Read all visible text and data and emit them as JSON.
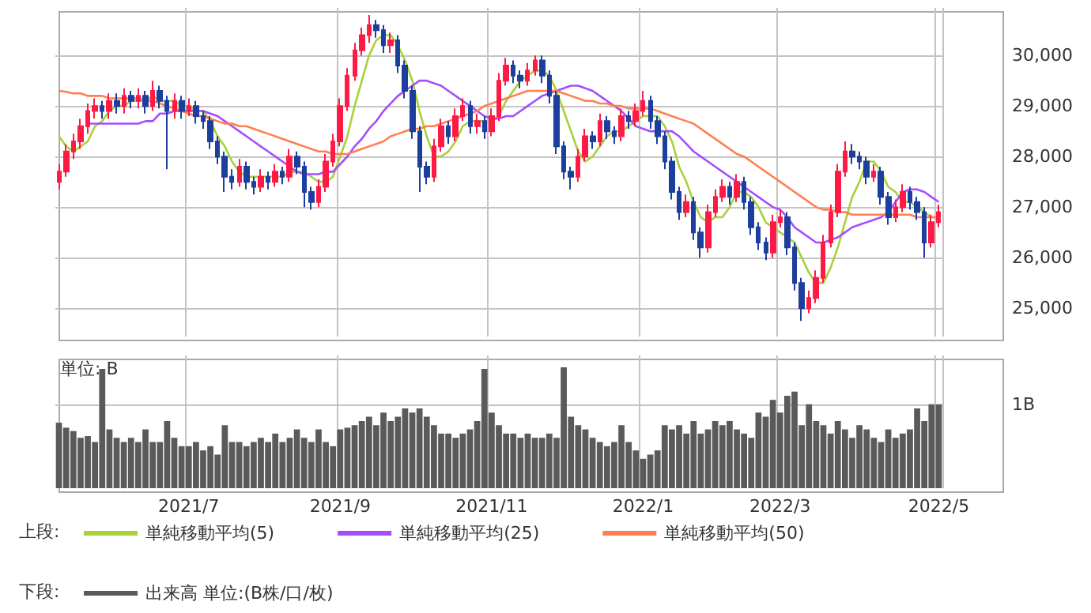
{
  "chart_data": [
    {
      "type": "candlestick",
      "categories": [
        null,
        null,
        null,
        null,
        null,
        null,
        null,
        null,
        null,
        null,
        null,
        null,
        null,
        null,
        null,
        null,
        null,
        null,
        "2021/7",
        null,
        null,
        null,
        null,
        null,
        null,
        null,
        null,
        null,
        null,
        null,
        null,
        null,
        null,
        null,
        null,
        null,
        null,
        null,
        null,
        "2021/9",
        null,
        null,
        null,
        null,
        null,
        null,
        null,
        null,
        null,
        null,
        null,
        null,
        null,
        null,
        null,
        null,
        null,
        null,
        null,
        null,
        "2021/11",
        null,
        null,
        null,
        null,
        null,
        null,
        null,
        null,
        null,
        null,
        null,
        null,
        null,
        null,
        null,
        null,
        null,
        null,
        null,
        null,
        "2022/1",
        null,
        null,
        null,
        null,
        null,
        null,
        null,
        null,
        null,
        null,
        null,
        null,
        null,
        null,
        null,
        null,
        null,
        null,
        "2022/3",
        null,
        null,
        null,
        null,
        null,
        null,
        null,
        null,
        null,
        null,
        null,
        null,
        null,
        null,
        null,
        null,
        null,
        null,
        null,
        null,
        null,
        "2022/5"
      ],
      "ohlc": [
        [
          27500,
          27850,
          27350,
          27700
        ],
        [
          27700,
          28250,
          27600,
          28100
        ],
        [
          28100,
          28450,
          27950,
          28300
        ],
        [
          28300,
          28750,
          28150,
          28600
        ],
        [
          28600,
          29050,
          28450,
          28900
        ],
        [
          28900,
          29150,
          28750,
          29000
        ],
        [
          29000,
          29100,
          28750,
          28900
        ],
        [
          28900,
          29250,
          28750,
          29100
        ],
        [
          29100,
          29250,
          28850,
          29000
        ],
        [
          29000,
          29350,
          28850,
          29200
        ],
        [
          29200,
          29300,
          28950,
          29100
        ],
        [
          29100,
          29350,
          28950,
          29200
        ],
        [
          29200,
          29300,
          28850,
          29000
        ],
        [
          29000,
          29500,
          28900,
          29300
        ],
        [
          29300,
          29400,
          28950,
          29100
        ],
        [
          29100,
          29200,
          27750,
          28900
        ],
        [
          28900,
          29250,
          28750,
          29100
        ],
        [
          29100,
          29200,
          28750,
          28900
        ],
        [
          28900,
          29150,
          28800,
          29000
        ],
        [
          29000,
          29100,
          28650,
          28800
        ],
        [
          28800,
          28900,
          28550,
          28700
        ],
        [
          28700,
          28800,
          28150,
          28300
        ],
        [
          28300,
          28400,
          27850,
          28000
        ],
        [
          28000,
          28100,
          27300,
          27600
        ],
        [
          27600,
          27750,
          27350,
          27500
        ],
        [
          27500,
          27950,
          27400,
          27800
        ],
        [
          27800,
          27900,
          27350,
          27500
        ],
        [
          27500,
          27600,
          27250,
          27400
        ],
        [
          27400,
          27750,
          27300,
          27600
        ],
        [
          27600,
          27700,
          27350,
          27500
        ],
        [
          27500,
          27850,
          27400,
          27700
        ],
        [
          27700,
          27800,
          27450,
          27600
        ],
        [
          27600,
          28150,
          27500,
          28000
        ],
        [
          28000,
          28100,
          27650,
          27800
        ],
        [
          27800,
          27900,
          27000,
          27300
        ],
        [
          27300,
          27400,
          26950,
          27100
        ],
        [
          27100,
          27550,
          27000,
          27400
        ],
        [
          27400,
          28050,
          27300,
          27900
        ],
        [
          27900,
          28450,
          27800,
          28300
        ],
        [
          28300,
          29150,
          28200,
          29000
        ],
        [
          29000,
          29750,
          28900,
          29600
        ],
        [
          29600,
          30250,
          29500,
          30100
        ],
        [
          30100,
          30550,
          30000,
          30400
        ],
        [
          30400,
          30800,
          30250,
          30600
        ],
        [
          30600,
          30700,
          30350,
          30500
        ],
        [
          30500,
          30600,
          30050,
          30200
        ],
        [
          30200,
          30450,
          30050,
          30300
        ],
        [
          30300,
          30400,
          29650,
          29800
        ],
        [
          29800,
          29900,
          29150,
          29300
        ],
        [
          29300,
          29400,
          28350,
          28500
        ],
        [
          28500,
          28600,
          27300,
          27800
        ],
        [
          27800,
          27900,
          27450,
          27600
        ],
        [
          27600,
          28350,
          27500,
          28200
        ],
        [
          28200,
          28750,
          28100,
          28600
        ],
        [
          28600,
          28700,
          28250,
          28400
        ],
        [
          28400,
          28950,
          28300,
          28800
        ],
        [
          28800,
          29150,
          28700,
          29000
        ],
        [
          29000,
          29100,
          28450,
          28600
        ],
        [
          28600,
          28850,
          28450,
          28700
        ],
        [
          28700,
          28800,
          28350,
          28500
        ],
        [
          28500,
          28950,
          28400,
          28800
        ],
        [
          28800,
          29650,
          28700,
          29500
        ],
        [
          29500,
          29950,
          29400,
          29800
        ],
        [
          29800,
          29900,
          29450,
          29600
        ],
        [
          29600,
          29700,
          29350,
          29500
        ],
        [
          29500,
          29850,
          29400,
          29700
        ],
        [
          29700,
          30000,
          29600,
          29900
        ],
        [
          29900,
          30000,
          29450,
          29600
        ],
        [
          29600,
          29700,
          29050,
          29200
        ],
        [
          29200,
          29300,
          28050,
          28200
        ],
        [
          28200,
          28300,
          27550,
          27700
        ],
        [
          27700,
          27800,
          27350,
          27600
        ],
        [
          27600,
          28150,
          27500,
          28000
        ],
        [
          28000,
          28550,
          27900,
          28400
        ],
        [
          28400,
          28500,
          28150,
          28300
        ],
        [
          28300,
          28850,
          28200,
          28700
        ],
        [
          28700,
          28800,
          28350,
          28500
        ],
        [
          28500,
          28600,
          28250,
          28400
        ],
        [
          28400,
          28950,
          28300,
          28800
        ],
        [
          28800,
          28900,
          28550,
          28700
        ],
        [
          28700,
          29050,
          28600,
          28900
        ],
        [
          28900,
          29300,
          28800,
          29100
        ],
        [
          29100,
          29200,
          28550,
          28700
        ],
        [
          28700,
          28800,
          28250,
          28400
        ],
        [
          28400,
          28500,
          27750,
          27900
        ],
        [
          27900,
          28000,
          27150,
          27300
        ],
        [
          27300,
          27400,
          26750,
          26900
        ],
        [
          26900,
          27250,
          26800,
          27100
        ],
        [
          27100,
          27200,
          26350,
          26500
        ],
        [
          26500,
          26600,
          26000,
          26200
        ],
        [
          26200,
          27050,
          26100,
          26900
        ],
        [
          26900,
          27350,
          26800,
          27200
        ],
        [
          27200,
          27550,
          27100,
          27400
        ],
        [
          27400,
          27500,
          27050,
          27200
        ],
        [
          27200,
          27650,
          27100,
          27500
        ],
        [
          27500,
          27600,
          26950,
          27100
        ],
        [
          27100,
          27200,
          26450,
          26600
        ],
        [
          26600,
          26700,
          26150,
          26300
        ],
        [
          26300,
          26400,
          25950,
          26100
        ],
        [
          26100,
          26850,
          26000,
          26700
        ],
        [
          26700,
          26950,
          26600,
          26800
        ],
        [
          26800,
          26900,
          26050,
          26200
        ],
        [
          26200,
          26300,
          25350,
          25500
        ],
        [
          25500,
          25600,
          24750,
          25000
        ],
        [
          25000,
          25350,
          24900,
          25200
        ],
        [
          25200,
          25750,
          25100,
          25600
        ],
        [
          25600,
          26450,
          25500,
          26300
        ],
        [
          26300,
          27050,
          26200,
          26900
        ],
        [
          26900,
          27850,
          26800,
          27700
        ],
        [
          27700,
          28300,
          27600,
          28100
        ],
        [
          28100,
          28250,
          27850,
          28000
        ],
        [
          28000,
          28100,
          27750,
          27900
        ],
        [
          27900,
          28000,
          27450,
          27600
        ],
        [
          27600,
          27850,
          27500,
          27700
        ],
        [
          27700,
          27800,
          27050,
          27200
        ],
        [
          27200,
          27300,
          26650,
          26800
        ],
        [
          26800,
          27150,
          26700,
          27000
        ],
        [
          27000,
          27450,
          26900,
          27300
        ],
        [
          27300,
          27400,
          26950,
          27100
        ],
        [
          27100,
          27200,
          26750,
          26900
        ],
        [
          26900,
          27000,
          26000,
          26300
        ],
        [
          26300,
          26850,
          26200,
          26700
        ],
        [
          26700,
          27050,
          26600,
          26900
        ]
      ],
      "series": [
        {
          "name": "単純移動平均(5)",
          "type": "line",
          "color": "#a8d13a",
          "values": [
            28400,
            28200,
            28100,
            28200,
            28300,
            28600,
            28700,
            28900,
            29000,
            29000,
            29100,
            29100,
            29100,
            29200,
            29100,
            29100,
            29100,
            29000,
            29000,
            28900,
            28900,
            28700,
            28400,
            28200,
            27900,
            27700,
            27600,
            27600,
            27600,
            27600,
            27600,
            27600,
            27700,
            27700,
            27700,
            27600,
            27500,
            27500,
            27600,
            28000,
            28400,
            29000,
            29500,
            30000,
            30300,
            30400,
            30400,
            30200,
            29900,
            29500,
            28900,
            28400,
            28000,
            28000,
            28100,
            28300,
            28600,
            28700,
            28700,
            28700,
            28700,
            28800,
            29100,
            29300,
            29500,
            29600,
            29700,
            29700,
            29600,
            29300,
            28900,
            28500,
            28100,
            27900,
            28000,
            28200,
            28400,
            28500,
            28500,
            28600,
            28700,
            28800,
            28800,
            28800,
            28600,
            28300,
            27800,
            27500,
            27100,
            26800,
            26700,
            26800,
            26800,
            27000,
            27300,
            27300,
            27200,
            27000,
            26700,
            26600,
            26500,
            26400,
            26300,
            26000,
            25700,
            25500,
            25500,
            25800,
            26200,
            26700,
            27200,
            27500,
            27900,
            27900,
            27700,
            27400,
            27300,
            27100,
            27100,
            27000,
            26900,
            26800,
            26800
          ]
        },
        {
          "name": "単純移動平均(25)",
          "type": "line",
          "color": "#a64dff",
          "values": [
            null,
            null,
            null,
            null,
            28650,
            28650,
            28650,
            28650,
            28650,
            28650,
            28650,
            28650,
            28700,
            28700,
            28850,
            28850,
            28900,
            28900,
            28900,
            28900,
            28900,
            28850,
            28800,
            28700,
            28600,
            28500,
            28400,
            28300,
            28200,
            28100,
            28000,
            27900,
            27800,
            27700,
            27650,
            27650,
            27650,
            27700,
            27700,
            27850,
            28000,
            28200,
            28350,
            28550,
            28700,
            28900,
            29050,
            29200,
            29300,
            29400,
            29500,
            29500,
            29450,
            29400,
            29300,
            29200,
            29100,
            29000,
            28900,
            28800,
            28750,
            28750,
            28800,
            28800,
            28900,
            29000,
            29100,
            29200,
            29250,
            29300,
            29350,
            29400,
            29400,
            29350,
            29300,
            29200,
            29100,
            29000,
            28900,
            28750,
            28600,
            28550,
            28500,
            28500,
            28500,
            28500,
            28400,
            28250,
            28100,
            28000,
            27900,
            27800,
            27700,
            27600,
            27500,
            27400,
            27300,
            27200,
            27100,
            27000,
            26950,
            26800,
            26600,
            26500,
            26400,
            26300,
            26300,
            26350,
            26400,
            26500,
            26600,
            26650,
            26700,
            26750,
            26800,
            26900,
            27100,
            27300,
            27350,
            27350,
            27300,
            27200,
            27100
          ]
        },
        {
          "name": "単純移動平均(50)",
          "type": "line",
          "color": "#ff7f50",
          "values": [
            29300,
            29280,
            29250,
            29250,
            29200,
            29200,
            29200,
            29150,
            29150,
            29150,
            29150,
            29150,
            29100,
            29100,
            29050,
            29000,
            28950,
            28900,
            28850,
            28800,
            28800,
            28750,
            28700,
            28650,
            28650,
            28600,
            28600,
            28550,
            28500,
            28450,
            28400,
            28350,
            28300,
            28250,
            28200,
            28150,
            28100,
            28100,
            28050,
            28050,
            28050,
            28100,
            28150,
            28200,
            28250,
            28300,
            28400,
            28450,
            28500,
            28550,
            28550,
            28600,
            28600,
            28650,
            28700,
            28750,
            28800,
            28850,
            28900,
            29000,
            29050,
            29100,
            29150,
            29200,
            29250,
            29300,
            29300,
            29300,
            29300,
            29300,
            29250,
            29200,
            29150,
            29100,
            29100,
            29050,
            29050,
            29000,
            29000,
            28950,
            28950,
            28950,
            28950,
            28900,
            28850,
            28800,
            28750,
            28700,
            28650,
            28550,
            28450,
            28350,
            28250,
            28150,
            28050,
            28000,
            27900,
            27800,
            27700,
            27600,
            27500,
            27400,
            27300,
            27200,
            27100,
            27000,
            26950,
            26950,
            26900,
            26900,
            26850,
            26850,
            26850,
            26850,
            26850,
            26850,
            26850,
            26850,
            26850,
            26800,
            26800,
            26800,
            26800
          ]
        }
      ],
      "ylim": [
        24440,
        30940
      ],
      "yticks": [
        {
          "value": 25000,
          "label": "25,000"
        },
        {
          "value": 26000,
          "label": "26,000"
        },
        {
          "value": 27000,
          "label": "27,000"
        },
        {
          "value": 28000,
          "label": "28,000"
        },
        {
          "value": 29000,
          "label": "29,000"
        },
        {
          "value": 30000,
          "label": "30,000"
        }
      ],
      "grid": true,
      "legend": "bottom",
      "tick_labels": "y",
      "line_style": "solid",
      "annotations": [
        "上段:"
      ]
    },
    {
      "type": "bar",
      "categories": [
        null,
        null,
        null,
        null,
        null,
        null,
        null,
        null,
        null,
        null,
        null,
        null,
        null,
        null,
        null,
        null,
        null,
        null,
        "2021/7",
        null,
        null,
        null,
        null,
        null,
        null,
        null,
        null,
        null,
        null,
        null,
        null,
        null,
        null,
        null,
        null,
        null,
        null,
        null,
        null,
        "2021/9",
        null,
        null,
        null,
        null,
        null,
        null,
        null,
        null,
        null,
        null,
        null,
        null,
        null,
        null,
        null,
        null,
        null,
        null,
        null,
        null,
        "2021/11",
        null,
        null,
        null,
        null,
        null,
        null,
        null,
        null,
        null,
        null,
        null,
        null,
        null,
        null,
        null,
        null,
        null,
        null,
        null,
        null,
        "2022/1",
        null,
        null,
        null,
        null,
        null,
        null,
        null,
        null,
        null,
        null,
        null,
        null,
        null,
        null,
        null,
        null,
        null,
        null,
        "2022/3",
        null,
        null,
        null,
        null,
        null,
        null,
        null,
        null,
        null,
        null,
        null,
        null,
        null,
        null,
        null,
        null,
        null,
        null,
        null,
        null,
        null,
        "2022/5"
      ],
      "series": [
        {
          "name": "出来高 単位:(B株/口/枚)",
          "color": "#5a5a5a",
          "values": [
            0.78,
            0.72,
            0.68,
            0.6,
            0.62,
            0.55,
            1.42,
            0.7,
            0.6,
            0.55,
            0.6,
            0.55,
            0.7,
            0.55,
            0.55,
            0.8,
            0.6,
            0.5,
            0.5,
            0.55,
            0.45,
            0.5,
            0.4,
            0.75,
            0.55,
            0.55,
            0.5,
            0.55,
            0.6,
            0.55,
            0.65,
            0.55,
            0.6,
            0.7,
            0.6,
            0.55,
            0.7,
            0.55,
            0.5,
            0.7,
            0.72,
            0.75,
            0.8,
            0.85,
            0.75,
            0.9,
            0.8,
            0.85,
            0.95,
            0.9,
            0.95,
            0.85,
            0.75,
            0.65,
            0.65,
            0.6,
            0.65,
            0.7,
            0.8,
            1.42,
            0.9,
            0.75,
            0.65,
            0.65,
            0.6,
            0.65,
            0.6,
            0.6,
            0.65,
            0.6,
            1.44,
            0.85,
            0.75,
            0.7,
            0.6,
            0.55,
            0.5,
            0.55,
            0.75,
            0.55,
            0.45,
            0.35,
            0.4,
            0.45,
            0.75,
            0.7,
            0.75,
            0.65,
            0.8,
            0.65,
            0.7,
            0.8,
            0.75,
            0.8,
            0.7,
            0.65,
            0.6,
            0.9,
            0.85,
            1.05,
            0.9,
            1.1,
            1.15,
            0.75,
            1.0,
            0.8,
            0.75,
            0.65,
            0.8,
            0.7,
            0.6,
            0.75,
            0.7,
            0.6,
            0.55,
            0.7,
            0.6,
            0.65,
            0.7,
            0.95,
            0.8,
            1.0,
            1.0
          ]
        }
      ],
      "ylim": [
        0,
        1.58
      ],
      "yticks": [
        {
          "value": 1,
          "label": "1B"
        }
      ],
      "ylabel": "単位: B",
      "grid": true,
      "legend": "bottom",
      "annotations": [
        "下段:"
      ]
    }
  ]
}
